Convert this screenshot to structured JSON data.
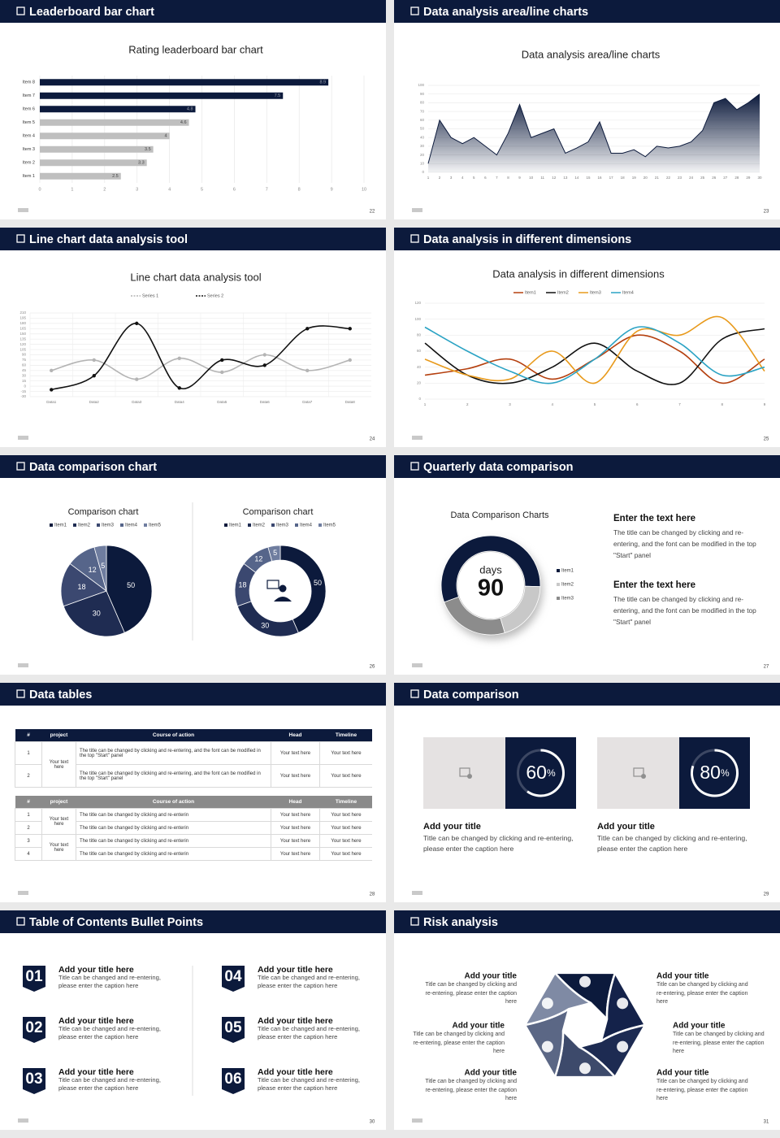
{
  "slides": [
    {
      "title": "Leaderboard bar chart",
      "page": 22
    },
    {
      "title": "Data analysis area/line charts",
      "page": 23
    },
    {
      "title": "Line chart data analysis tool",
      "page": 24
    },
    {
      "title": "Data analysis in different dimensions",
      "page": 25
    },
    {
      "title": "Data comparison chart",
      "page": 26
    },
    {
      "title": "Quarterly data comparison",
      "page": 27
    },
    {
      "title": "Data tables",
      "page": 28
    },
    {
      "title": "Data comparison",
      "page": 29
    },
    {
      "title": "Table of Contents Bullet Points",
      "page": 30
    },
    {
      "title": "Risk analysis",
      "page": 31
    }
  ],
  "chart_data": [
    {
      "type": "bar",
      "orientation": "horizontal",
      "title": "Rating leaderboard bar chart",
      "categories": [
        "Item 1",
        "Item 2",
        "Item 3",
        "Item 4",
        "Item 5",
        "Item 6",
        "Item 7",
        "Item 8"
      ],
      "values": [
        2.5,
        3.3,
        3.5,
        4,
        4.6,
        4.8,
        7.5,
        8.9
      ],
      "colors": [
        "#bfbfbf",
        "#bfbfbf",
        "#bfbfbf",
        "#bfbfbf",
        "#bfbfbf",
        "#0c1a3c",
        "#0c1a3c",
        "#0c1a3c"
      ],
      "xlim": [
        0,
        10
      ],
      "xticks": [
        0,
        1,
        2,
        3,
        4,
        5,
        6,
        7,
        8,
        9,
        10
      ],
      "grid": true
    },
    {
      "type": "area",
      "title": "Data analysis area/line charts",
      "x": [
        1,
        2,
        3,
        4,
        5,
        6,
        7,
        8,
        9,
        10,
        11,
        12,
        13,
        14,
        15,
        16,
        17,
        18,
        19,
        20,
        21,
        22,
        23,
        24,
        25,
        26,
        27,
        28,
        29,
        30
      ],
      "values": [
        10,
        60,
        40,
        33,
        40,
        30,
        20,
        45,
        78,
        40,
        45,
        50,
        22,
        28,
        35,
        58,
        22,
        22,
        26,
        18,
        30,
        28,
        30,
        35,
        48,
        80,
        85,
        72,
        80,
        90
      ],
      "color": "#0c1a3c",
      "xlim": [
        1,
        30
      ],
      "xticks": [
        1,
        2,
        3,
        4,
        5,
        6,
        7,
        8,
        9,
        10,
        11,
        12,
        13,
        14,
        15,
        16,
        17,
        18,
        19,
        20,
        21,
        22,
        23,
        24,
        25,
        26,
        27,
        28,
        29,
        30
      ],
      "ylim": [
        0,
        100
      ],
      "yticks": [
        0,
        10,
        20,
        30,
        40,
        50,
        60,
        70,
        80,
        90,
        100
      ],
      "grid": true
    },
    {
      "type": "line",
      "title": "Line chart data analysis tool",
      "smooth": true,
      "markers": true,
      "categories": [
        "Data1",
        "Data2",
        "Data3",
        "Data4",
        "Data5",
        "Data6",
        "Data7",
        "Data8"
      ],
      "series": [
        {
          "name": "Series 1",
          "color": "#b4b4b4",
          "values": [
            45,
            75,
            20,
            80,
            40,
            90,
            45,
            75
          ]
        },
        {
          "name": "Series 2",
          "color": "#111111",
          "values": [
            -10,
            30,
            180,
            -5,
            75,
            60,
            165,
            165
          ]
        }
      ],
      "ylim": [
        -30,
        210
      ],
      "yticks": [
        -30,
        -15,
        0,
        15,
        30,
        45,
        60,
        75,
        90,
        105,
        120,
        135,
        150,
        165,
        180,
        195,
        210
      ],
      "grid": true
    },
    {
      "type": "line",
      "title": "Data analysis in different dimensions",
      "smooth": true,
      "markers": false,
      "x": [
        1,
        2,
        3,
        4,
        5,
        6,
        7,
        8,
        9
      ],
      "series": [
        {
          "name": "Item1",
          "color": "#b5400f",
          "values": [
            30,
            38,
            50,
            25,
            50,
            80,
            60,
            20,
            50
          ]
        },
        {
          "name": "Item2",
          "color": "#111111",
          "values": [
            70,
            30,
            20,
            40,
            70,
            35,
            20,
            75,
            88
          ]
        },
        {
          "name": "Item3",
          "color": "#e89a1c",
          "values": [
            50,
            30,
            25,
            60,
            20,
            85,
            80,
            102,
            35
          ]
        },
        {
          "name": "Item4",
          "color": "#2ba3c4",
          "values": [
            90,
            60,
            35,
            20,
            50,
            90,
            70,
            30,
            40
          ]
        }
      ],
      "xlim": [
        1,
        9
      ],
      "xticks": [
        1,
        2,
        3,
        4,
        5,
        6,
        7,
        8,
        9
      ],
      "ylim": [
        0,
        120
      ],
      "yticks": [
        0,
        20,
        40,
        60,
        80,
        100,
        120
      ],
      "grid": true
    },
    {
      "type": "pie",
      "title": "Comparison chart",
      "categories": [
        "Item1",
        "Item2",
        "Item3",
        "Item4",
        "Item5"
      ],
      "values": [
        50,
        30,
        18,
        12,
        5
      ],
      "colors": [
        "#0c1a3c",
        "#1f2c52",
        "#3b4870",
        "#56658a",
        "#6f7d9f"
      ]
    },
    {
      "type": "pie",
      "donut": true,
      "title": "Comparison chart",
      "categories": [
        "Item1",
        "Item2",
        "Item3",
        "Item4",
        "Item5"
      ],
      "values": [
        50,
        30,
        18,
        12,
        5
      ],
      "colors": [
        "#0c1a3c",
        "#1f2c52",
        "#3b4870",
        "#56658a",
        "#6f7d9f"
      ]
    },
    {
      "type": "pie",
      "donut": true,
      "title": "Data Comparison Charts",
      "categories": [
        "Item1",
        "Item2",
        "Item3"
      ],
      "values": [
        56,
        20,
        24
      ],
      "colors": [
        "#0c1a3c",
        "#c8c8c8",
        "#8c8c8c"
      ],
      "center_label": "days",
      "center_value": 90
    }
  ],
  "quarterly": {
    "blocks": [
      {
        "heading": "Enter the text here",
        "text": "The title can be changed by clicking and re-entering, and the font can be modified in the top \"Start\" panel"
      },
      {
        "heading": "Enter the text here",
        "text": "The title can be changed by clicking and re-entering, and the font can be modified in the top \"Start\" panel"
      }
    ]
  },
  "tables": [
    {
      "header": [
        "#",
        "project",
        "Course of action",
        "Head",
        "Timeline"
      ],
      "groups": [
        {
          "project": "Your text here",
          "rows": [
            {
              "number": 1,
              "course": "The title can be changed by clicking and re-entering, and the font can be modified in the top \"Start\" panel",
              "head": "Your text here",
              "timeline": "Your text here"
            },
            {
              "number": 2,
              "course": "The title can be changed by clicking and re-entering, and the font can be modified in the top \"Start\" panel",
              "head": "Your text here",
              "timeline": "Your text here"
            }
          ]
        }
      ]
    },
    {
      "header": [
        "#",
        "project",
        "Course of action",
        "Head",
        "Timeline"
      ],
      "groups": [
        {
          "project": "Your text here",
          "rows": [
            {
              "number": 1,
              "course": "The title can be changed by clicking and re-enterin",
              "head": "Your text here",
              "timeline": "Your text here"
            },
            {
              "number": 2,
              "course": "The title can be changed by clicking and re-enterin",
              "head": "Your text here",
              "timeline": "Your text here"
            }
          ]
        },
        {
          "project": "Your text here",
          "rows": [
            {
              "number": 3,
              "course": "The title can be changed by clicking and re-enterin",
              "head": "Your text here",
              "timeline": "Your text here"
            },
            {
              "number": 4,
              "course": "The title can be changed by clicking and re-enterin",
              "head": "Your text here",
              "timeline": "Your text here"
            }
          ]
        }
      ]
    }
  ],
  "comparison": {
    "cards": [
      {
        "value": 60,
        "unit": "%",
        "title": "Add your title",
        "text": "Title can be changed by clicking and re-entering, please enter the caption here"
      },
      {
        "value": 80,
        "unit": "%",
        "title": "Add your title",
        "text": "Title can be changed by clicking and re-entering, please enter the caption here"
      }
    ]
  },
  "contents": {
    "items": [
      {
        "number": "01",
        "title": "Add your title here",
        "text": "Title can be changed and re-entering, please enter the caption here"
      },
      {
        "number": "02",
        "title": "Add your title here",
        "text": "Title can be changed and re-entering, please enter the caption here"
      },
      {
        "number": "03",
        "title": "Add your title here",
        "text": "Title can be changed and re-entering, please enter the caption here"
      },
      {
        "number": "04",
        "title": "Add your title here",
        "text": "Title can be changed and re-entering, please enter the caption here"
      },
      {
        "number": "05",
        "title": "Add your title here",
        "text": "Title can be changed and re-entering, please enter the caption here"
      },
      {
        "number": "06",
        "title": "Add your title here",
        "text": "Title can be changed and re-entering, please enter the caption here"
      }
    ]
  },
  "risk": {
    "items": [
      {
        "title": "Add your title",
        "text": "Title can be changed by clicking and re-entering, please enter the caption here"
      },
      {
        "title": "Add your title",
        "text": "Title can be changed by clicking and re-entering, please enter the caption here"
      },
      {
        "title": "Add your title",
        "text": "Title can be changed by clicking and re-entering, please enter the caption here"
      },
      {
        "title": "Add your title",
        "text": "Title can be changed by clicking and re-entering, please enter the caption here"
      },
      {
        "title": "Add your title",
        "text": "Title can be changed by clicking and re-entering, please enter the caption here"
      },
      {
        "title": "Add your title",
        "text": "Title can be changed by clicking and re-entering, please enter the caption here"
      }
    ]
  }
}
